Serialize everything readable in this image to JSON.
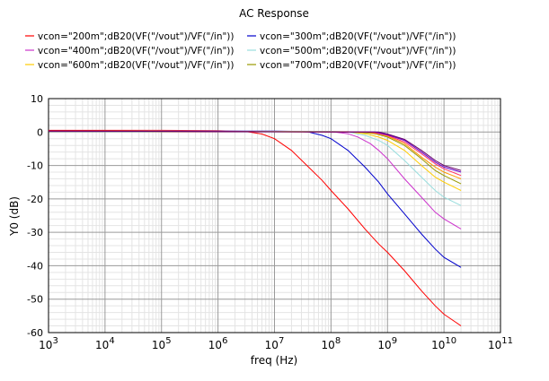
{
  "chart_data": {
    "type": "line",
    "title": "AC Response",
    "xlabel": "freq (Hz)",
    "ylabel": "Y0 (dB)",
    "xscale": "log",
    "xlim": [
      1000,
      100000000000
    ],
    "ylim": [
      -60,
      10
    ],
    "x_ticks": [
      {
        "value": 1000,
        "base": "10",
        "exp": "3"
      },
      {
        "value": 10000,
        "base": "10",
        "exp": "4"
      },
      {
        "value": 100000,
        "base": "10",
        "exp": "5"
      },
      {
        "value": 1000000,
        "base": "10",
        "exp": "6"
      },
      {
        "value": 10000000,
        "base": "10",
        "exp": "7"
      },
      {
        "value": 100000000,
        "base": "10",
        "exp": "8"
      },
      {
        "value": 1000000000,
        "base": "10",
        "exp": "9"
      },
      {
        "value": 10000000000,
        "base": "10",
        "exp": "10"
      },
      {
        "value": 100000000000,
        "base": "10",
        "exp": "11"
      }
    ],
    "y_ticks": [
      10,
      0,
      -10,
      -20,
      -30,
      -40,
      -50,
      -60
    ],
    "grid": true,
    "legend_position": "top",
    "series": [
      {
        "name": "vcon=\"200m\";dB20(VF(\"/vout\")/VF(\"/in\"))",
        "color": "#ff0000",
        "x": [
          1000,
          100000,
          1000000,
          3000000,
          6000000,
          10000000,
          20000000,
          40000000,
          70000000,
          100000000,
          200000000,
          400000000,
          700000000,
          1000000000,
          2000000000,
          4000000000,
          7000000000,
          10000000000,
          20000000000
        ],
        "y": [
          0.5,
          0.5,
          0.4,
          0.2,
          -0.6,
          -2,
          -5.5,
          -10.5,
          -14.5,
          -17.5,
          -23,
          -29,
          -33.5,
          -36,
          -41.5,
          -47.5,
          -52,
          -54.5,
          -58
        ]
      },
      {
        "name": "vcon=\"300m\";dB20(VF(\"/vout\")/VF(\"/in\"))",
        "color": "#0000cc",
        "x": [
          1000,
          10000000,
          20000000,
          40000000,
          70000000,
          100000000,
          200000000,
          400000000,
          700000000,
          1000000000,
          2000000000,
          4000000000,
          7000000000,
          10000000000,
          20000000000
        ],
        "y": [
          0.3,
          0.3,
          0.2,
          0,
          -1,
          -2,
          -5.5,
          -10.5,
          -15,
          -18.5,
          -24.5,
          -30.5,
          -35,
          -37.5,
          -40.5
        ]
      },
      {
        "name": "vcon=\"400m\";dB20(VF(\"/vout\")/VF(\"/in\"))",
        "color": "#cc33cc",
        "x": [
          1000,
          70000000,
          100000000,
          200000000,
          300000000,
          500000000,
          700000000,
          1000000000,
          2000000000,
          4000000000,
          7000000000,
          10000000000,
          20000000000
        ],
        "y": [
          0.3,
          0.2,
          0.1,
          -0.5,
          -1.5,
          -3.5,
          -5.5,
          -8,
          -14,
          -19.5,
          -24,
          -26,
          -29
        ]
      },
      {
        "name": "vcon=\"500m\";dB20(VF(\"/vout\")/VF(\"/in\"))",
        "color": "#99dddd",
        "x": [
          1000,
          100000000,
          200000000,
          400000000,
          700000000,
          1000000000,
          2000000000,
          4000000000,
          7000000000,
          10000000000,
          20000000000
        ],
        "y": [
          0.3,
          0.2,
          0,
          -1,
          -2.5,
          -4,
          -8.5,
          -13.5,
          -17.5,
          -19.5,
          -22
        ]
      },
      {
        "name": "vcon=\"600m\";dB20(VF(\"/vout\")/VF(\"/in\"))",
        "color": "#ffcc00",
        "x": [
          1000,
          200000000,
          400000000,
          700000000,
          1000000000,
          2000000000,
          4000000000,
          7000000000,
          10000000000,
          20000000000
        ],
        "y": [
          0.3,
          0.1,
          -0.5,
          -1.5,
          -2.5,
          -5.5,
          -10,
          -13.5,
          -15,
          -17.5
        ]
      },
      {
        "name": "vcon=\"700m\";dB20(VF(\"/vout\")/VF(\"/in\"))",
        "color": "#999900",
        "x": [
          1000,
          300000000,
          600000000,
          1000000000,
          2000000000,
          4000000000,
          7000000000,
          10000000000,
          20000000000
        ],
        "y": [
          0.3,
          0,
          -0.5,
          -1.5,
          -4,
          -8,
          -11.5,
          -13,
          -15.5
        ]
      },
      {
        "name": "",
        "color": "#ff9900",
        "x": [
          1000,
          400000000,
          700000000,
          1000000000,
          2000000000,
          4000000000,
          7000000000,
          10000000000,
          20000000000
        ],
        "y": [
          0.3,
          0,
          -0.5,
          -1.2,
          -3.5,
          -7.5,
          -10.5,
          -12,
          -14
        ]
      },
      {
        "name": "",
        "color": "#ff3366",
        "x": [
          1000,
          500000000,
          1000000000,
          2000000000,
          4000000000,
          7000000000,
          10000000000,
          20000000000
        ],
        "y": [
          0.3,
          0,
          -1,
          -3,
          -6.5,
          -9.5,
          -11,
          -13
        ]
      },
      {
        "name": "",
        "color": "#6600cc",
        "x": [
          1000,
          600000000,
          1000000000,
          2000000000,
          4000000000,
          7000000000,
          10000000000,
          20000000000
        ],
        "y": [
          0.3,
          0,
          -0.8,
          -2.5,
          -6,
          -9,
          -10.5,
          -12
        ]
      },
      {
        "name": "",
        "color": "#660066",
        "x": [
          1000,
          700000000,
          1000000000,
          2000000000,
          4000000000,
          7000000000,
          10000000000,
          20000000000
        ],
        "y": [
          0.3,
          0,
          -0.6,
          -2.2,
          -5.5,
          -8.5,
          -10,
          -11.5
        ]
      }
    ]
  }
}
